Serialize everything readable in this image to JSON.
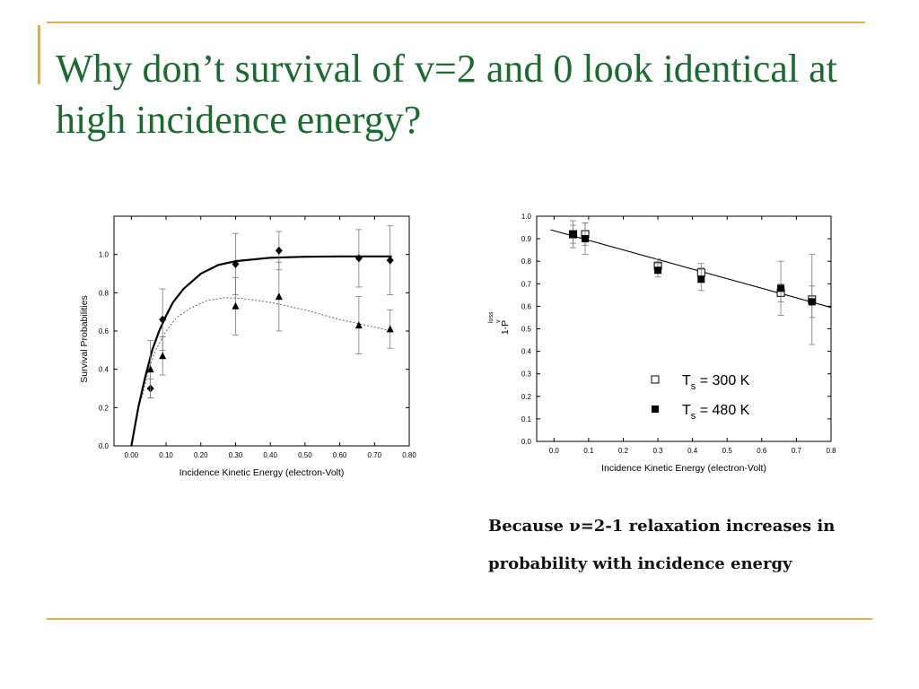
{
  "slide": {
    "title": "Why don’t survival of v=2 and 0 look identical at high incidence energy?",
    "caption": "Because ν=2-1 relaxation increases in probability with incidence energy"
  },
  "colors": {
    "accent_rule": "#e0b04a",
    "title": "#1b6b2f"
  },
  "chart_data": [
    {
      "type": "scatter",
      "xlabel": "Incidence Kinetic Energy (electron-Volt)",
      "ylabel": "Survival Probabilities",
      "xlim": [
        -0.05,
        0.8
      ],
      "ylim": [
        0,
        1.2
      ],
      "xticks": [
        "0.00",
        "0.10",
        "0.20",
        "0.30",
        "0.40",
        "0.50",
        "0.60",
        "0.70",
        "0.80"
      ],
      "yticks": [
        "0.0",
        "0.2",
        "0.4",
        "0.6",
        "0.8",
        "1.0"
      ],
      "series": [
        {
          "marker": "diamond",
          "points": [
            {
              "x": 0.055,
              "y": 0.3,
              "err": 0.05
            },
            {
              "x": 0.09,
              "y": 0.66,
              "err": 0.16
            },
            {
              "x": 0.3,
              "y": 0.95,
              "err": 0.16
            },
            {
              "x": 0.425,
              "y": 1.02,
              "err": 0.1
            },
            {
              "x": 0.655,
              "y": 0.98,
              "err": 0.15
            },
            {
              "x": 0.745,
              "y": 0.97,
              "err": 0.18
            }
          ]
        },
        {
          "marker": "triangle",
          "points": [
            {
              "x": 0.055,
              "y": 0.4,
              "err": 0.15
            },
            {
              "x": 0.09,
              "y": 0.47,
              "err": 0.1
            },
            {
              "x": 0.3,
              "y": 0.73,
              "err": 0.15
            },
            {
              "x": 0.425,
              "y": 0.78,
              "err": 0.18
            },
            {
              "x": 0.655,
              "y": 0.63,
              "err": 0.15
            },
            {
              "x": 0.745,
              "y": 0.61,
              "err": 0.1
            }
          ]
        }
      ],
      "fits": [
        {
          "style": "solid",
          "x": [
            0.0,
            0.02,
            0.04,
            0.06,
            0.08,
            0.1,
            0.12,
            0.15,
            0.2,
            0.25,
            0.3,
            0.4,
            0.5,
            0.6,
            0.75
          ],
          "y": [
            0.0,
            0.2,
            0.36,
            0.5,
            0.6,
            0.68,
            0.75,
            0.82,
            0.9,
            0.945,
            0.965,
            0.983,
            0.988,
            0.99,
            0.99
          ]
        },
        {
          "style": "dotted",
          "x": [
            0.03,
            0.05,
            0.07,
            0.1,
            0.13,
            0.17,
            0.22,
            0.27,
            0.32,
            0.4,
            0.5,
            0.6,
            0.7,
            0.75
          ],
          "y": [
            0.25,
            0.4,
            0.5,
            0.6,
            0.67,
            0.72,
            0.76,
            0.775,
            0.77,
            0.75,
            0.71,
            0.66,
            0.62,
            0.6
          ]
        }
      ]
    },
    {
      "type": "scatter",
      "xlabel": "Incidence Kinetic Energy (electron-Volt)",
      "ylabel": "1-P",
      "ylabel_sub": "v",
      "ylabel_sup": "loss",
      "xlim": [
        -0.05,
        0.8
      ],
      "ylim": [
        0,
        1.0
      ],
      "xticks": [
        "0.0",
        "0.1",
        "0.2",
        "0.3",
        "0.4",
        "0.5",
        "0.6",
        "0.7",
        "0.8"
      ],
      "yticks": [
        "0.0",
        "0.1",
        "0.2",
        "0.3",
        "0.4",
        "0.5",
        "0.6",
        "0.7",
        "0.8",
        "0.9",
        "1.0"
      ],
      "legend": [
        {
          "marker": "open-square",
          "label": "T",
          "sub": "s",
          "rest": " = 300 K"
        },
        {
          "marker": "filled-square",
          "label": "T",
          "sub": "s",
          "rest": " = 480 K"
        }
      ],
      "legend_position": "lower-right",
      "series": [
        {
          "name": "T_s = 300 K",
          "marker": "open-square",
          "points": [
            {
              "x": 0.055,
              "y": 0.92,
              "err": 0.06
            },
            {
              "x": 0.09,
              "y": 0.92,
              "err": 0.05
            },
            {
              "x": 0.3,
              "y": 0.78,
              "err": 0.03
            },
            {
              "x": 0.425,
              "y": 0.75,
              "err": 0.04
            },
            {
              "x": 0.655,
              "y": 0.66,
              "err": 0.04
            },
            {
              "x": 0.745,
              "y": 0.63,
              "err": 0.2
            }
          ]
        },
        {
          "name": "T_s = 480 K",
          "marker": "filled-square",
          "points": [
            {
              "x": 0.055,
              "y": 0.92,
              "err": 0.04
            },
            {
              "x": 0.09,
              "y": 0.9,
              "err": 0.07
            },
            {
              "x": 0.3,
              "y": 0.76,
              "err": 0.03
            },
            {
              "x": 0.425,
              "y": 0.72,
              "err": 0.05
            },
            {
              "x": 0.655,
              "y": 0.68,
              "err": 0.12
            },
            {
              "x": 0.745,
              "y": 0.62,
              "err": 0.07
            }
          ]
        }
      ],
      "fits": [
        {
          "style": "solid",
          "x": [
            -0.01,
            0.8
          ],
          "y": [
            0.94,
            0.595
          ]
        }
      ]
    }
  ]
}
